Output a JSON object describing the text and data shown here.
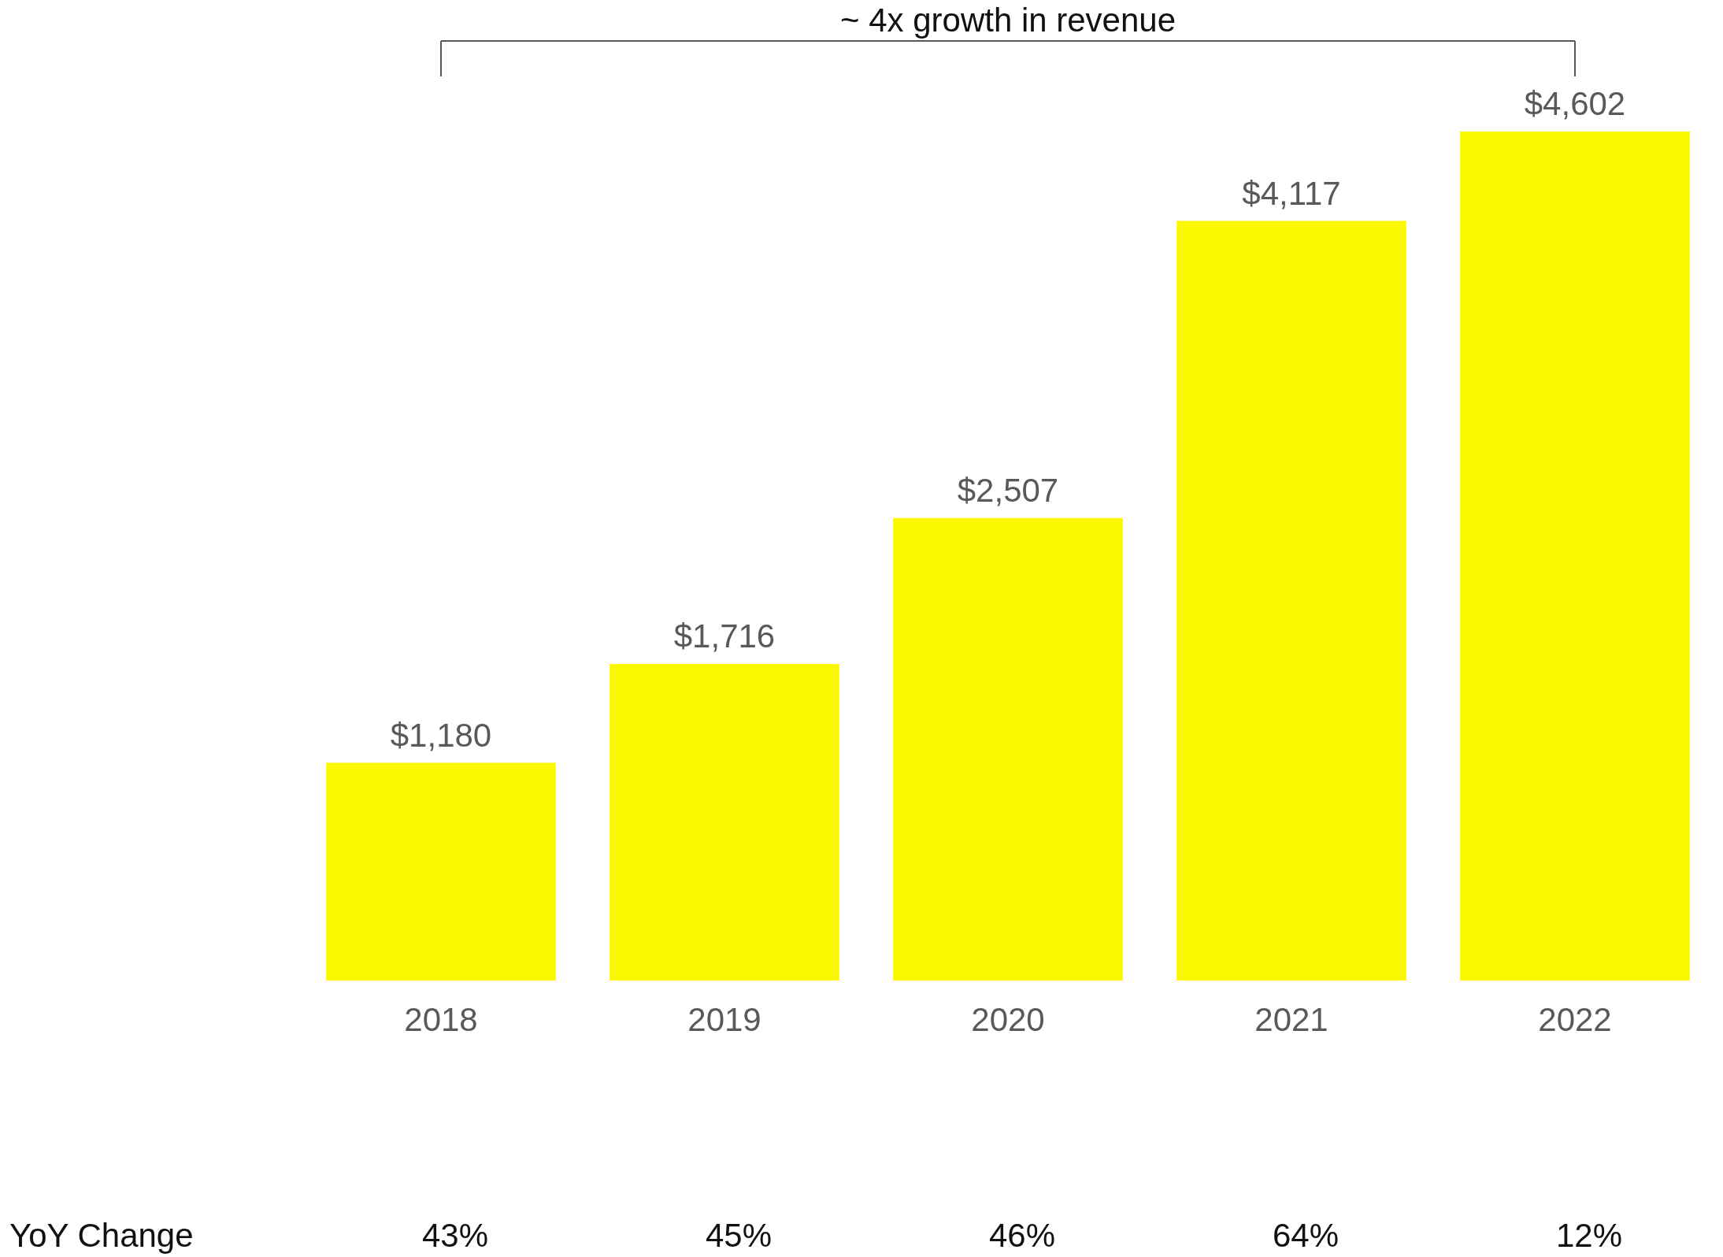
{
  "chart_data": {
    "type": "bar",
    "categories": [
      "2018",
      "2019",
      "2020",
      "2021",
      "2022"
    ],
    "values": [
      1180,
      1716,
      2507,
      4117,
      4602
    ],
    "color": "#fcf800",
    "value_labels": [
      "$1,180",
      "$1,716",
      "$2,507",
      "$4,117",
      "$4,602"
    ],
    "annotations": [
      "~ 4x growth in revenue",
      "YoY Change",
      "43%",
      "45%",
      "46%",
      "64%",
      "12%"
    ]
  }
}
